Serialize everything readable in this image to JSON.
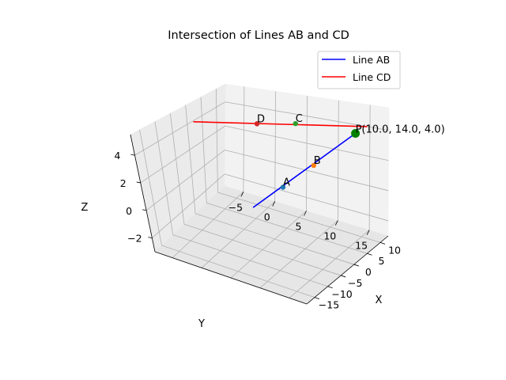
{
  "chart_data": {
    "type": "line3d",
    "title": "Intersection of Lines AB and CD",
    "xlabel": "X",
    "ylabel": "Y",
    "zlabel": "Z",
    "xlim": [
      -18,
      13
    ],
    "ylim": [
      -8,
      18
    ],
    "zlim": [
      -3,
      5.5
    ],
    "x_ticks": [
      -15,
      -10,
      -5,
      0,
      5,
      10
    ],
    "y_ticks": [
      -5,
      0,
      5,
      10,
      15
    ],
    "z_ticks": [
      -2,
      0,
      2,
      4
    ],
    "grid": true,
    "legend_position": "top-right",
    "series": [
      {
        "name": "Line AB",
        "color": "#0000ff",
        "points": [
          [
            4,
            0,
            -2
          ],
          [
            10,
            14,
            4
          ]
        ]
      },
      {
        "name": "Line CD",
        "color": "#ff0000",
        "points": [
          [
            12,
            15,
            4.2
          ],
          [
            -6,
            -4,
            5.5
          ]
        ]
      }
    ],
    "points": [
      {
        "label": "A",
        "coords": [
          5.8,
          4.2,
          -0.2
        ],
        "color": "#1f77b4"
      },
      {
        "label": "B",
        "coords": [
          7.6,
          8.4,
          1.6
        ],
        "color": "#ff7f0e"
      },
      {
        "label": "C",
        "coords": [
          4.5,
          7.0,
          5.0
        ],
        "color": "#2ca02c"
      },
      {
        "label": "D",
        "coords": [
          0.5,
          2.8,
          5.2
        ],
        "color": "#d62728"
      }
    ],
    "intersection": {
      "label": "P(10.0, 14.0, 4.0)",
      "coords": [
        10,
        14,
        4
      ],
      "color": "#008000"
    }
  }
}
